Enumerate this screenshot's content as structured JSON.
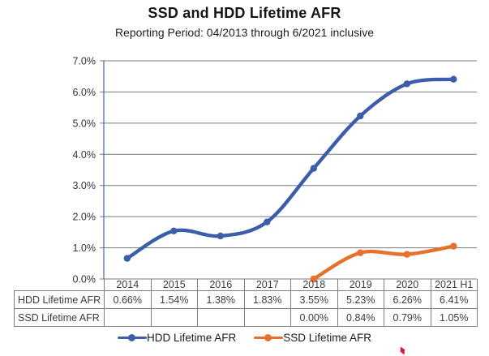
{
  "chart_data": {
    "type": "line",
    "title": "SSD and HDD Lifetime AFR",
    "subtitle": "Reporting Period: 04/2013 through 6/2021 inclusive",
    "categories": [
      "2014",
      "2015",
      "2016",
      "2017",
      "2018",
      "2019",
      "2020",
      "2021 H1"
    ],
    "series": [
      {
        "name": "HDD Lifetime AFR",
        "color": "#3B5DAA",
        "values": [
          0.66,
          1.54,
          1.38,
          1.83,
          3.55,
          5.23,
          6.26,
          6.41
        ],
        "display": [
          "0.66%",
          "1.54%",
          "1.38%",
          "1.83%",
          "3.55%",
          "5.23%",
          "6.26%",
          "6.41%"
        ]
      },
      {
        "name": "SSD Lifetime AFR",
        "color": "#E6712C",
        "values": [
          null,
          null,
          null,
          null,
          0.0,
          0.84,
          0.79,
          1.05
        ],
        "display": [
          "",
          "",
          "",
          "",
          "0.00%",
          "0.84%",
          "0.79%",
          "1.05%"
        ]
      }
    ],
    "ylim": [
      0,
      7
    ],
    "ytick_step": 1,
    "ytick_labels": [
      "0.0%",
      "1.0%",
      "2.0%",
      "3.0%",
      "4.0%",
      "5.0%",
      "6.0%",
      "7.0%"
    ],
    "grid": true,
    "grid_color": "#7a7a7a",
    "axis_color": "#4472C4",
    "legend_position": "bottom"
  },
  "table": {
    "columns": [
      "2014",
      "2015",
      "2016",
      "2017",
      "2018",
      "2019",
      "2020",
      "2021 H1"
    ],
    "row_headers": [
      "HDD Lifetime AFR",
      "SSD Lifetime AFR"
    ],
    "rows": [
      [
        "0.66%",
        "1.54%",
        "1.38%",
        "1.83%",
        "3.55%",
        "5.23%",
        "6.26%",
        "6.41%"
      ],
      [
        "",
        "",
        "",
        "",
        "0.00%",
        "0.84%",
        "0.79%",
        "1.05%"
      ]
    ]
  },
  "legend": {
    "items": [
      {
        "label": "HDD Lifetime AFR",
        "color": "#3B5DAA"
      },
      {
        "label": "SSD Lifetime AFR",
        "color": "#E6712C"
      }
    ]
  },
  "artifact_color": "#DD1B31"
}
